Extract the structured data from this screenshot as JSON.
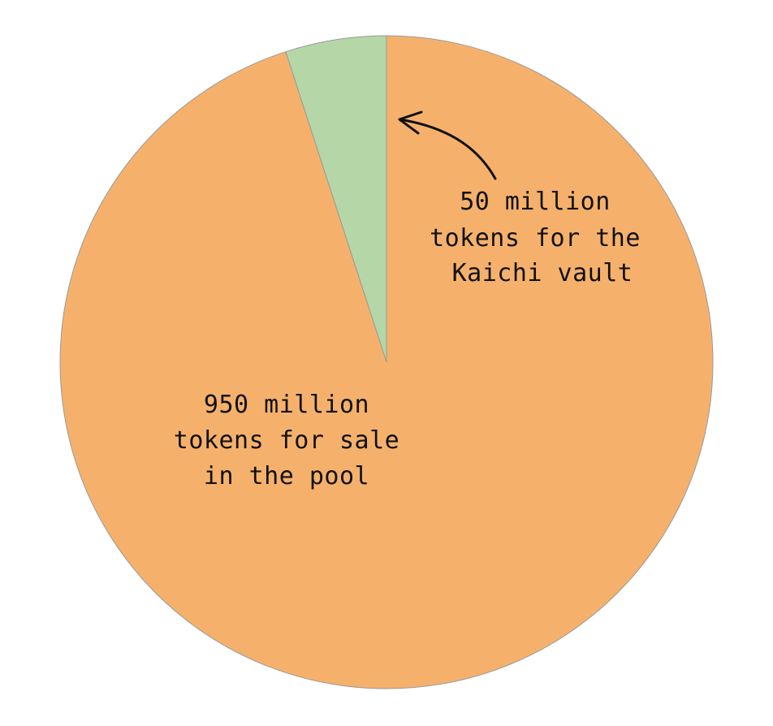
{
  "chart_data": {
    "type": "pie",
    "start_angle": "12 o'clock",
    "direction": "counterclockwise",
    "slices": [
      {
        "label_lines": [
          "50 million",
          "tokens for the",
          "Kaichi vault"
        ],
        "value": 50,
        "unit": "million tokens",
        "color": "#b5d6a7"
      },
      {
        "label_lines": [
          "950 million",
          "tokens for sale",
          "in the pool"
        ],
        "value": 950,
        "unit": "million tokens",
        "color": "#f5b16b"
      }
    ],
    "annotation": {
      "style": "curved arrow",
      "points_to": "50 million tokens for the Kaichi vault"
    }
  }
}
